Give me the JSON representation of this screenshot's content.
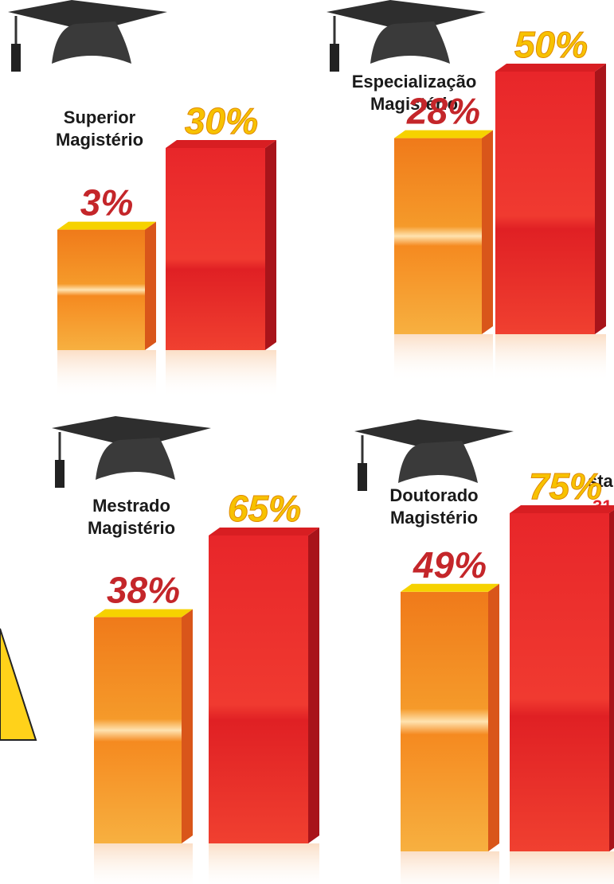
{
  "chart_data": {
    "type": "bar3d",
    "groups": [
      {
        "title_lines": [
          "Superior",
          "Magistério"
        ],
        "values": [
          3,
          30
        ],
        "value_labels": [
          "3%",
          "30%"
        ]
      },
      {
        "title_lines": [
          "Especialização",
          "Magistério"
        ],
        "values": [
          28,
          50
        ],
        "value_labels": [
          "28%",
          "50%"
        ]
      },
      {
        "title_lines": [
          "Mestrado",
          "Magistério"
        ],
        "values": [
          38,
          65
        ],
        "value_labels": [
          "38%",
          "65%"
        ]
      },
      {
        "title_lines": [
          "Doutorado",
          "Magistério"
        ],
        "values": [
          49,
          75
        ],
        "value_labels": [
          "49%",
          "75%"
        ]
      }
    ],
    "fragments": [
      "sta",
      ",31"
    ]
  }
}
